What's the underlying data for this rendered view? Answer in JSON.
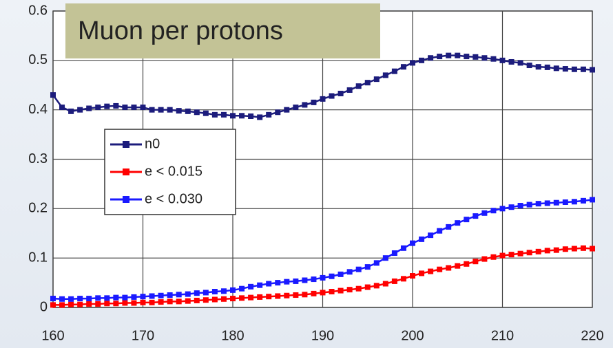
{
  "chart_data": {
    "type": "line",
    "title": "Muon per protons",
    "x": [
      160,
      161,
      162,
      163,
      164,
      165,
      166,
      167,
      168,
      169,
      170,
      171,
      172,
      173,
      174,
      175,
      176,
      177,
      178,
      179,
      180,
      181,
      182,
      183,
      184,
      185,
      186,
      187,
      188,
      189,
      190,
      191,
      192,
      193,
      194,
      195,
      196,
      197,
      198,
      199,
      200,
      201,
      202,
      203,
      204,
      205,
      206,
      207,
      208,
      209,
      210,
      211,
      212,
      213,
      214,
      215,
      216,
      217,
      218,
      219,
      220
    ],
    "series": [
      {
        "name": "n0",
        "color": "#1c1c7c",
        "values": [
          0.43,
          0.405,
          0.397,
          0.4,
          0.403,
          0.405,
          0.407,
          0.408,
          0.405,
          0.405,
          0.405,
          0.4,
          0.4,
          0.4,
          0.398,
          0.397,
          0.395,
          0.393,
          0.39,
          0.39,
          0.388,
          0.388,
          0.387,
          0.385,
          0.39,
          0.395,
          0.4,
          0.405,
          0.41,
          0.415,
          0.422,
          0.428,
          0.433,
          0.44,
          0.448,
          0.455,
          0.462,
          0.47,
          0.478,
          0.487,
          0.495,
          0.5,
          0.505,
          0.508,
          0.51,
          0.51,
          0.508,
          0.507,
          0.505,
          0.503,
          0.5,
          0.497,
          0.495,
          0.49,
          0.487,
          0.486,
          0.484,
          0.483,
          0.482,
          0.482,
          0.481
        ]
      },
      {
        "name": "e < 0.015",
        "color": "#ff0000",
        "values": [
          0.005,
          0.005,
          0.006,
          0.006,
          0.007,
          0.007,
          0.008,
          0.008,
          0.009,
          0.009,
          0.01,
          0.01,
          0.011,
          0.012,
          0.012,
          0.013,
          0.014,
          0.015,
          0.016,
          0.017,
          0.018,
          0.019,
          0.02,
          0.021,
          0.022,
          0.023,
          0.024,
          0.025,
          0.026,
          0.028,
          0.03,
          0.032,
          0.034,
          0.036,
          0.038,
          0.041,
          0.044,
          0.048,
          0.053,
          0.058,
          0.064,
          0.069,
          0.073,
          0.077,
          0.08,
          0.084,
          0.088,
          0.093,
          0.098,
          0.102,
          0.105,
          0.107,
          0.109,
          0.111,
          0.113,
          0.115,
          0.116,
          0.118,
          0.119,
          0.12,
          0.119
        ]
      },
      {
        "name": "e < 0.030",
        "color": "#1a1aff",
        "values": [
          0.018,
          0.017,
          0.017,
          0.018,
          0.018,
          0.019,
          0.019,
          0.02,
          0.02,
          0.021,
          0.022,
          0.023,
          0.024,
          0.025,
          0.026,
          0.027,
          0.029,
          0.03,
          0.032,
          0.033,
          0.035,
          0.038,
          0.042,
          0.045,
          0.048,
          0.05,
          0.052,
          0.053,
          0.055,
          0.057,
          0.06,
          0.063,
          0.067,
          0.072,
          0.077,
          0.082,
          0.09,
          0.1,
          0.11,
          0.12,
          0.13,
          0.138,
          0.146,
          0.155,
          0.163,
          0.171,
          0.178,
          0.185,
          0.191,
          0.196,
          0.2,
          0.203,
          0.206,
          0.208,
          0.21,
          0.211,
          0.212,
          0.213,
          0.214,
          0.216,
          0.218
        ]
      }
    ],
    "xlim": [
      160,
      220
    ],
    "ylim": [
      0,
      0.6
    ],
    "xticks": [
      160,
      170,
      180,
      190,
      200,
      210,
      220
    ],
    "yticks": [
      0,
      0.1,
      0.2,
      0.3,
      0.4,
      0.5,
      0.6
    ],
    "grid": true
  }
}
